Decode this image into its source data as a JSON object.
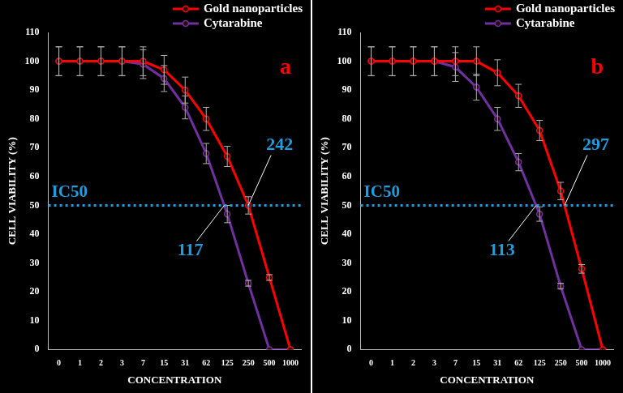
{
  "chart_data": [
    {
      "type": "line",
      "panel_label": {
        "text": "a",
        "color": "#ff0000"
      },
      "x_label": "CONCENTRATION",
      "y_label": "CELL VIABILITY (%)",
      "categories": [
        "0",
        "1",
        "2",
        "3",
        "7",
        "15",
        "31",
        "62",
        "125",
        "250",
        "500",
        "1000"
      ],
      "series": [
        {
          "name": "Gold nanoparticles",
          "color": "#ff0000",
          "marker": "circle",
          "values": [
            100,
            100,
            100,
            100,
            100,
            97,
            90,
            80,
            67,
            50,
            25,
            0
          ],
          "error": [
            5,
            5,
            5,
            5,
            5,
            5,
            4.5,
            4,
            3.5,
            3,
            1,
            0
          ]
        },
        {
          "name": "Cytarabine",
          "color": "#7030a0",
          "marker": "circle",
          "values": [
            100,
            100,
            100,
            100,
            99,
            94,
            84,
            68,
            47,
            23,
            0,
            0
          ],
          "error": [
            5,
            5,
            5,
            5,
            5,
            4.5,
            4,
            3.5,
            3,
            1,
            0,
            0
          ]
        }
      ],
      "ylim": [
        0,
        110
      ],
      "yticks": [
        0,
        10,
        20,
        30,
        40,
        50,
        60,
        70,
        80,
        90,
        100,
        110
      ],
      "grid": false,
      "legend": "top right",
      "reference_line": {
        "value": 50,
        "label": "IC50",
        "color": "#1e9ee0",
        "line_style": "dotted"
      },
      "annotations": [
        {
          "text": "242",
          "series": "Gold nanoparticles",
          "color": "#1e9ee0"
        },
        {
          "text": "117",
          "series": "Cytarabine",
          "color": "#1e9ee0"
        }
      ]
    },
    {
      "type": "line",
      "panel_label": {
        "text": "b",
        "color": "#ff0000"
      },
      "x_label": "CONCENTRATION",
      "y_label": "CELL VIABILITY (%)",
      "categories": [
        "0",
        "1",
        "2",
        "3",
        "7",
        "15",
        "31",
        "62",
        "125",
        "250",
        "500",
        "1000"
      ],
      "series": [
        {
          "name": "Gold nanoparticles",
          "color": "#ff0000",
          "marker": "circle",
          "values": [
            100,
            100,
            100,
            100,
            100,
            100,
            96,
            88,
            76,
            55,
            28,
            0
          ],
          "error": [
            5,
            5,
            5,
            5,
            5,
            5,
            4.5,
            4,
            3.5,
            3,
            1.5,
            0
          ]
        },
        {
          "name": "Cytarabine",
          "color": "#7030a0",
          "marker": "circle",
          "values": [
            100,
            100,
            100,
            100,
            98,
            91,
            80,
            65,
            47,
            22,
            0,
            0
          ],
          "error": [
            5,
            5,
            5,
            5,
            5,
            4.5,
            4,
            3,
            2.5,
            1,
            0,
            0
          ]
        }
      ],
      "ylim": [
        0,
        110
      ],
      "yticks": [
        0,
        10,
        20,
        30,
        40,
        50,
        60,
        70,
        80,
        90,
        100,
        110
      ],
      "grid": false,
      "legend": "top right",
      "reference_line": {
        "value": 50,
        "label": "IC50",
        "color": "#1e9ee0",
        "line_style": "dotted"
      },
      "annotations": [
        {
          "text": "297",
          "series": "Gold nanoparticles",
          "color": "#1e9ee0"
        },
        {
          "text": "113",
          "series": "Cytarabine",
          "color": "#1e9ee0"
        }
      ]
    }
  ]
}
